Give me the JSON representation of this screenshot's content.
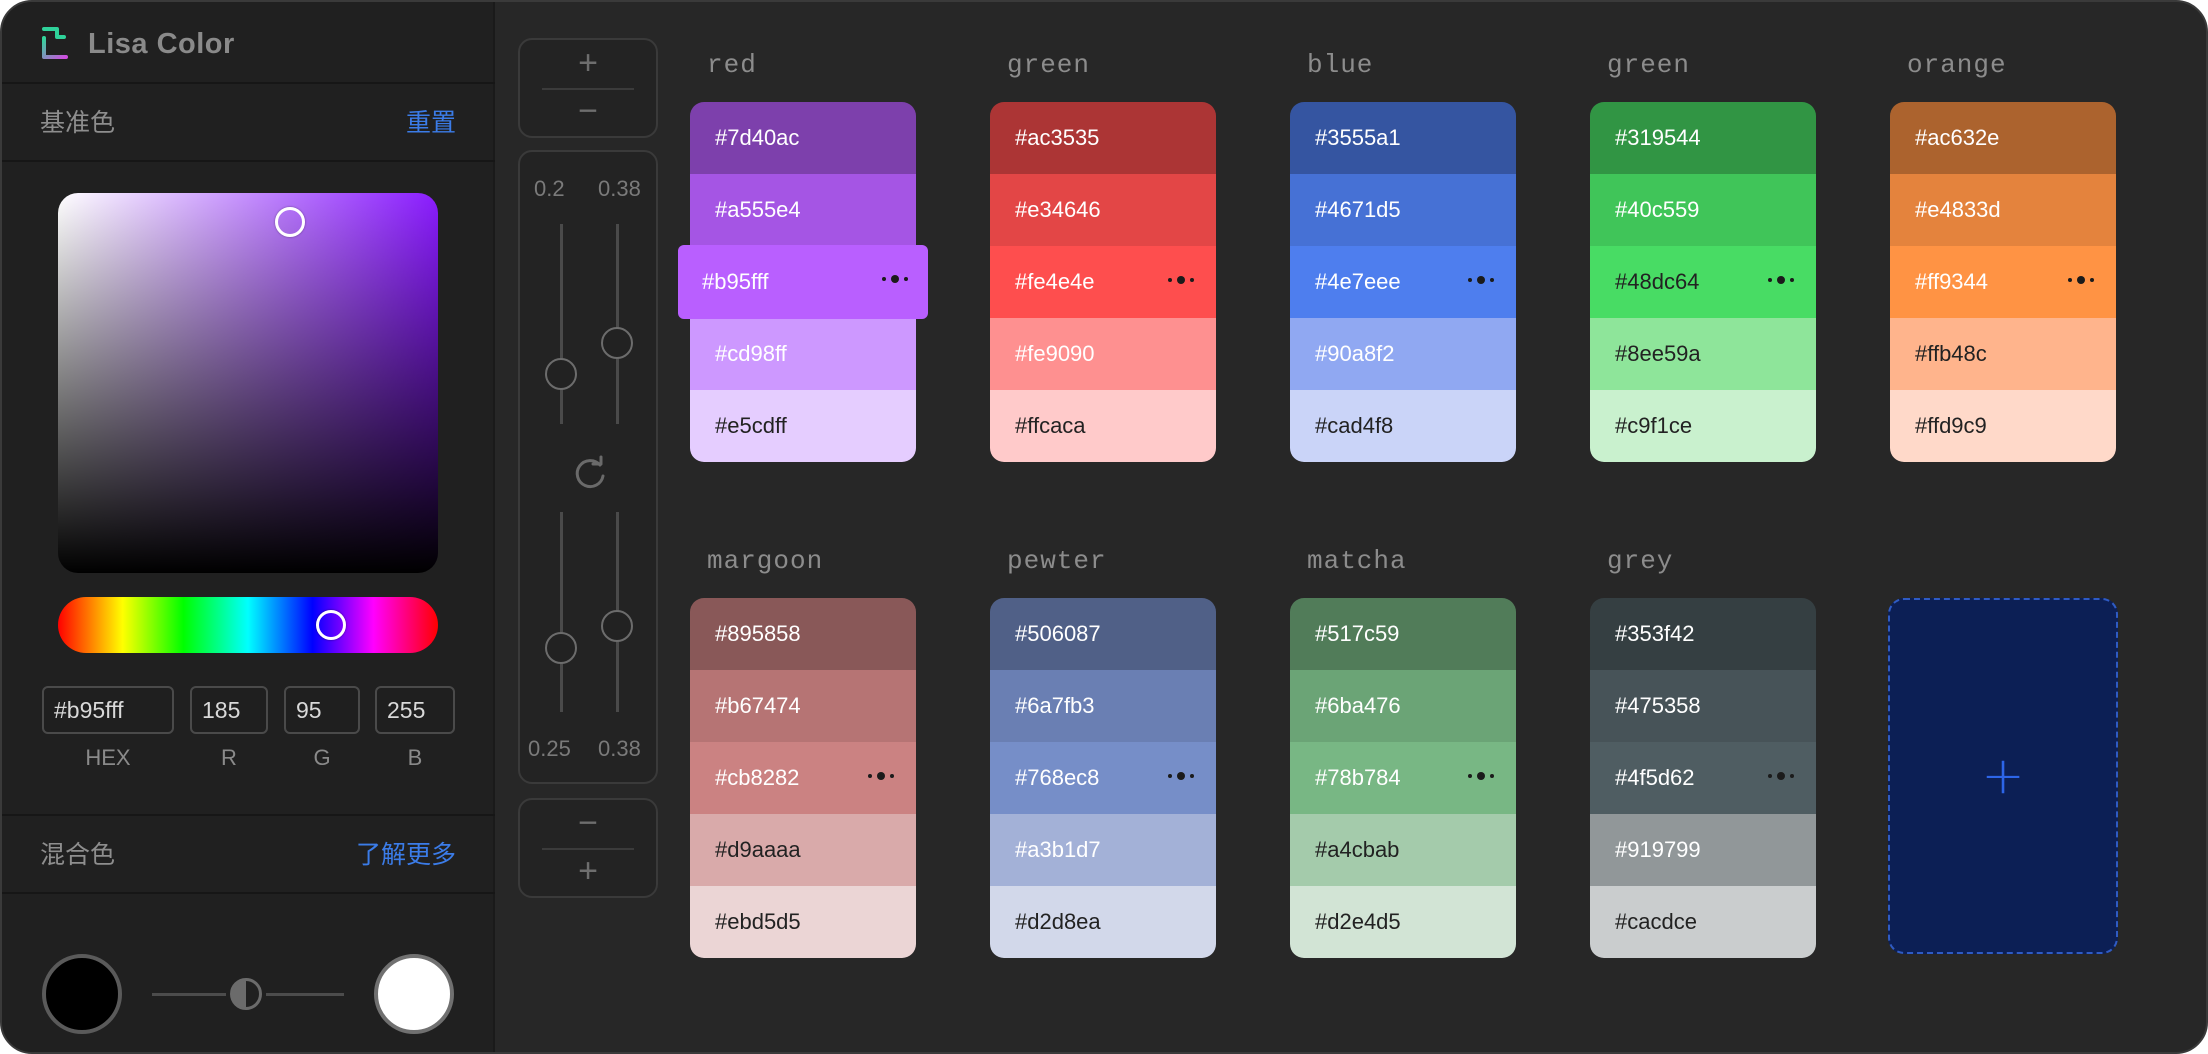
{
  "app": {
    "title": "Lisa Color"
  },
  "base_color": {
    "title": "基准色",
    "reset_label": "重置",
    "hex": "#b95fff",
    "r": "185",
    "g": "95",
    "b": "255",
    "labels": {
      "hex": "HEX",
      "r": "R",
      "g": "G",
      "b": "B"
    }
  },
  "mix_color": {
    "title": "混合色",
    "learn_more_label": "了解更多",
    "left_color": "#000000",
    "right_color": "#ffffff"
  },
  "controls": {
    "top": {
      "plus": "+",
      "minus": "−"
    },
    "sliders": {
      "top_left": "0.2",
      "top_right": "0.38",
      "bottom_left": "0.25",
      "bottom_right": "0.38"
    },
    "bottom": {
      "minus": "−",
      "plus": "+"
    }
  },
  "palettes": [
    {
      "name": "red",
      "swatches": [
        {
          "hex": "#7d40ac",
          "color": "#7d40ac"
        },
        {
          "hex": "#a555e4",
          "color": "#a555e4"
        },
        {
          "hex": "#b95fff",
          "color": "#b95fff",
          "selected": true
        },
        {
          "hex": "#cd98ff",
          "color": "#cd98ff"
        },
        {
          "hex": "#e5cdff",
          "color": "#e5cdff",
          "dark": true
        }
      ]
    },
    {
      "name": "green",
      "swatches": [
        {
          "hex": "#ac3535",
          "color": "#ac3535"
        },
        {
          "hex": "#e34646",
          "color": "#e34646"
        },
        {
          "hex": "#fe4e4e",
          "color": "#fe4e4e",
          "dots": true
        },
        {
          "hex": "#fe9090",
          "color": "#fe9090"
        },
        {
          "hex": "#ffcaca",
          "color": "#ffcaca",
          "dark": true
        }
      ]
    },
    {
      "name": "blue",
      "swatches": [
        {
          "hex": "#3555a1",
          "color": "#3555a1"
        },
        {
          "hex": "#4671d5",
          "color": "#4671d5"
        },
        {
          "hex": "#4e7eee",
          "color": "#4e7eee",
          "dots": true
        },
        {
          "hex": "#90a8f2",
          "color": "#90a8f2"
        },
        {
          "hex": "#cad4f8",
          "color": "#cad4f8",
          "dark": true
        }
      ]
    },
    {
      "name": "green",
      "swatches": [
        {
          "hex": "#319544",
          "color": "#319544"
        },
        {
          "hex": "#40c559",
          "color": "#40c559"
        },
        {
          "hex": "#48dc64",
          "color": "#48dc64",
          "dots": true,
          "dark": true
        },
        {
          "hex": "#8ee59a",
          "color": "#8ee59a",
          "dark": true
        },
        {
          "hex": "#c9f1ce",
          "color": "#c9f1ce",
          "dark": true
        }
      ]
    },
    {
      "name": "orange",
      "swatches": [
        {
          "hex": "#ac632e",
          "color": "#ac632e"
        },
        {
          "hex": "#e4833d",
          "color": "#e4833d"
        },
        {
          "hex": "#ff9344",
          "color": "#ff9344",
          "dots": true
        },
        {
          "hex": "#ffb48c",
          "color": "#ffb48c",
          "dark": true
        },
        {
          "hex": "#ffd9c9",
          "color": "#ffd9c9",
          "dark": true
        }
      ]
    },
    {
      "name": "margoon",
      "swatches": [
        {
          "hex": "#895858",
          "color": "#895858"
        },
        {
          "hex": "#b67474",
          "color": "#b67474"
        },
        {
          "hex": "#cb8282",
          "color": "#cb8282",
          "dots": true
        },
        {
          "hex": "#d9aaaa",
          "color": "#d9aaaa",
          "dark": true
        },
        {
          "hex": "#ebd5d5",
          "color": "#ebd5d5",
          "dark": true
        }
      ]
    },
    {
      "name": "pewter",
      "swatches": [
        {
          "hex": "#506087",
          "color": "#506087"
        },
        {
          "hex": "#6a7fb3",
          "color": "#6a7fb3"
        },
        {
          "hex": "#768ec8",
          "color": "#768ec8",
          "dots": true
        },
        {
          "hex": "#a3b1d7",
          "color": "#a3b1d7"
        },
        {
          "hex": "#d2d8ea",
          "color": "#d2d8ea",
          "dark": true
        }
      ]
    },
    {
      "name": "matcha",
      "swatches": [
        {
          "hex": "#517c59",
          "color": "#517c59"
        },
        {
          "hex": "#6ba476",
          "color": "#6ba476"
        },
        {
          "hex": "#78b784",
          "color": "#78b784",
          "dots": true
        },
        {
          "hex": "#a4cbab",
          "color": "#a4cbab",
          "dark": true
        },
        {
          "hex": "#d2e4d5",
          "color": "#d2e4d5",
          "dark": true
        }
      ]
    },
    {
      "name": "grey",
      "swatches": [
        {
          "hex": "#353f42",
          "color": "#353f42"
        },
        {
          "hex": "#475358",
          "color": "#475358"
        },
        {
          "hex": "#4f5d62",
          "color": "#4f5d62",
          "dots": true
        },
        {
          "hex": "#919799",
          "color": "#919799"
        },
        {
          "hex": "#cacdce",
          "color": "#cacdce",
          "dark": true
        }
      ]
    }
  ],
  "add_palette": {
    "label": "+"
  },
  "colors": {
    "accent": "#3b7ce8",
    "panel": "#202020",
    "canvas": "#272727"
  }
}
